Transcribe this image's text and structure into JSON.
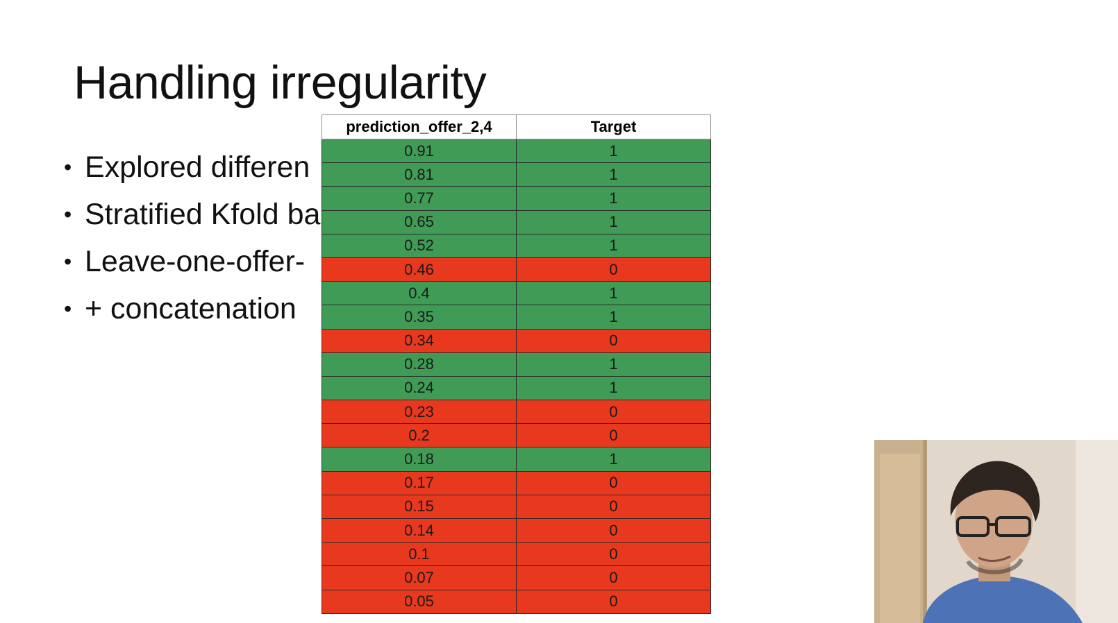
{
  "slide": {
    "title": "Handling irregularity",
    "bullets": [
      {
        "text": "Explored differen"
      },
      {
        "text": "Stratified Kfold ba"
      },
      {
        "text": "Leave-one-offer-"
      },
      {
        "text": "+ concatenation"
      }
    ]
  },
  "table": {
    "headers": [
      "prediction_offer_2,4",
      "Target"
    ],
    "rows": [
      {
        "pred": "0.91",
        "target": "1"
      },
      {
        "pred": "0.81",
        "target": "1"
      },
      {
        "pred": "0.77",
        "target": "1"
      },
      {
        "pred": "0.65",
        "target": "1"
      },
      {
        "pred": "0.52",
        "target": "1"
      },
      {
        "pred": "0.46",
        "target": "0"
      },
      {
        "pred": "0.4",
        "target": "1"
      },
      {
        "pred": "0.35",
        "target": "1"
      },
      {
        "pred": "0.34",
        "target": "0"
      },
      {
        "pred": "0.28",
        "target": "1"
      },
      {
        "pred": "0.24",
        "target": "1"
      },
      {
        "pred": "0.23",
        "target": "0"
      },
      {
        "pred": "0.2",
        "target": "0"
      },
      {
        "pred": "0.18",
        "target": "1"
      },
      {
        "pred": "0.17",
        "target": "0"
      },
      {
        "pred": "0.15",
        "target": "0"
      },
      {
        "pred": "0.14",
        "target": "0"
      },
      {
        "pred": "0.1",
        "target": "0"
      },
      {
        "pred": "0.07",
        "target": "0"
      },
      {
        "pred": "0.05",
        "target": "0"
      }
    ]
  },
  "colors": {
    "positive": "#3f9b55",
    "negative": "#e8391f"
  }
}
